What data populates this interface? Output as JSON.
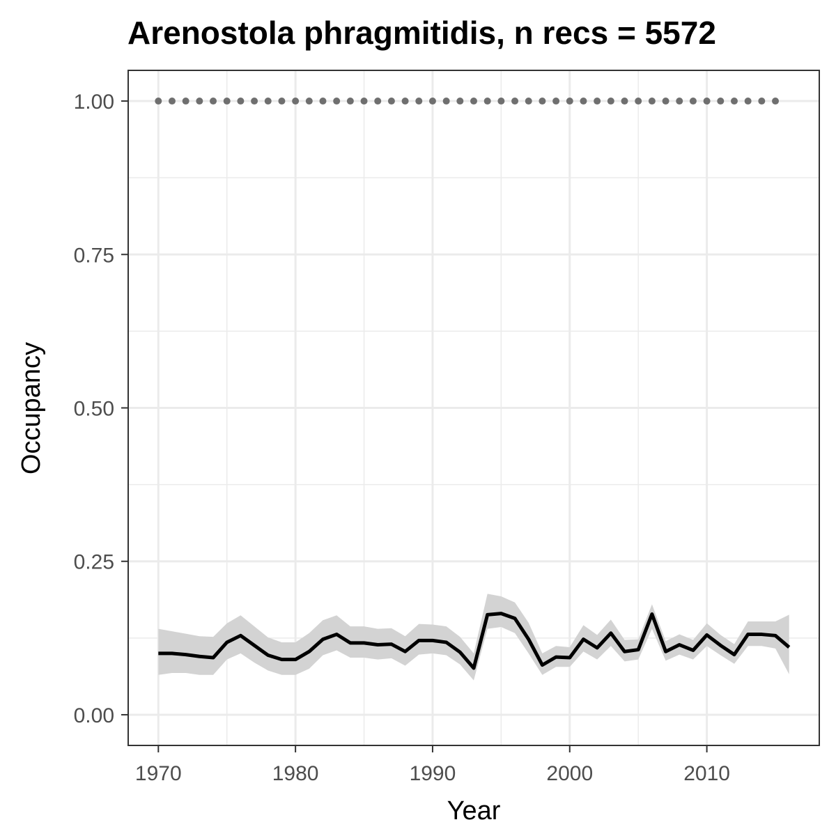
{
  "chart_data": {
    "type": "line",
    "title": "Arenostola phragmitidis, n recs = 5572",
    "xlabel": "Year",
    "ylabel": "Occupancy",
    "xlim": [
      1967.8,
      2018.2
    ],
    "ylim": [
      -0.05,
      1.05
    ],
    "x_ticks": [
      1970,
      1980,
      1990,
      2000,
      2010
    ],
    "x_tick_labels": [
      "1970",
      "1980",
      "1990",
      "2000",
      "2010"
    ],
    "y_ticks": [
      0,
      0.25,
      0.5,
      0.75,
      1.0
    ],
    "y_tick_labels": [
      "0.00",
      "0.25",
      "0.50",
      "0.75",
      "1.00"
    ],
    "grid": true,
    "legend": "none",
    "colors": {
      "line": "#000000",
      "ribbon": "#d3d3d3",
      "points": "#6f6f6f",
      "grid": "#ebebeb",
      "panel_border": "#333333"
    },
    "series": [
      {
        "type": "line",
        "x": [
          1970,
          1971,
          1972,
          1973,
          1974,
          1975,
          1976,
          1977,
          1978,
          1979,
          1980,
          1981,
          1982,
          1983,
          1984,
          1985,
          1986,
          1987,
          1988,
          1989,
          1990,
          1991,
          1992,
          1993,
          1994,
          1995,
          1996,
          1997,
          1998,
          1999,
          2000,
          2001,
          2002,
          2003,
          2004,
          2005,
          2006,
          2007,
          2008,
          2009,
          2010,
          2011,
          2012,
          2013,
          2014,
          2015,
          2016
        ],
        "y": [
          0.1,
          0.1,
          0.098,
          0.095,
          0.093,
          0.118,
          0.129,
          0.113,
          0.097,
          0.09,
          0.09,
          0.103,
          0.123,
          0.131,
          0.117,
          0.117,
          0.114,
          0.115,
          0.103,
          0.121,
          0.121,
          0.118,
          0.102,
          0.076,
          0.163,
          0.165,
          0.157,
          0.123,
          0.081,
          0.094,
          0.093,
          0.123,
          0.109,
          0.133,
          0.103,
          0.106,
          0.164,
          0.103,
          0.114,
          0.105,
          0.13,
          0.113,
          0.098,
          0.131,
          0.131,
          0.129,
          0.11
        ],
        "lower": [
          0.065,
          0.068,
          0.068,
          0.065,
          0.065,
          0.09,
          0.1,
          0.085,
          0.072,
          0.065,
          0.065,
          0.075,
          0.097,
          0.105,
          0.093,
          0.093,
          0.09,
          0.092,
          0.08,
          0.098,
          0.1,
          0.097,
          0.082,
          0.056,
          0.14,
          0.143,
          0.133,
          0.1,
          0.065,
          0.078,
          0.078,
          0.103,
          0.09,
          0.112,
          0.087,
          0.09,
          0.14,
          0.088,
          0.098,
          0.09,
          0.112,
          0.097,
          0.083,
          0.112,
          0.112,
          0.108,
          0.066
        ],
        "upper": [
          0.14,
          0.136,
          0.132,
          0.128,
          0.127,
          0.149,
          0.162,
          0.144,
          0.126,
          0.118,
          0.118,
          0.133,
          0.154,
          0.162,
          0.144,
          0.144,
          0.14,
          0.141,
          0.128,
          0.148,
          0.147,
          0.144,
          0.127,
          0.1,
          0.197,
          0.193,
          0.183,
          0.15,
          0.1,
          0.112,
          0.11,
          0.146,
          0.13,
          0.155,
          0.122,
          0.123,
          0.18,
          0.12,
          0.131,
          0.122,
          0.149,
          0.13,
          0.115,
          0.152,
          0.152,
          0.152,
          0.163
        ]
      },
      {
        "type": "points",
        "x": [
          1970,
          1971,
          1972,
          1973,
          1974,
          1975,
          1976,
          1977,
          1978,
          1979,
          1980,
          1981,
          1982,
          1983,
          1984,
          1985,
          1986,
          1987,
          1988,
          1989,
          1990,
          1991,
          1992,
          1993,
          1994,
          1995,
          1996,
          1997,
          1998,
          1999,
          2000,
          2001,
          2002,
          2003,
          2004,
          2005,
          2006,
          2007,
          2008,
          2009,
          2010,
          2011,
          2012,
          2013,
          2014,
          2015
        ],
        "y": [
          1,
          1,
          1,
          1,
          1,
          1,
          1,
          1,
          1,
          1,
          1,
          1,
          1,
          1,
          1,
          1,
          1,
          1,
          1,
          1,
          1,
          1,
          1,
          1,
          1,
          1,
          1,
          1,
          1,
          1,
          1,
          1,
          1,
          1,
          1,
          1,
          1,
          1,
          1,
          1,
          1,
          1,
          1,
          1,
          1,
          1
        ]
      }
    ]
  }
}
